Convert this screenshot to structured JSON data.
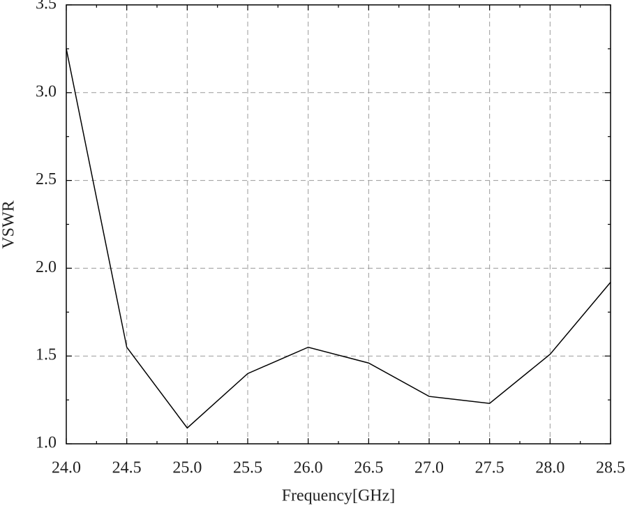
{
  "chart_data": {
    "type": "line",
    "xlabel": "Frequency[GHz]",
    "ylabel": "VSWR",
    "x": [
      24.0,
      24.5,
      25.0,
      25.5,
      26.0,
      26.5,
      27.0,
      27.5,
      28.0,
      28.5
    ],
    "series": [
      {
        "color": "#000000",
        "values": [
          3.25,
          1.55,
          1.09,
          1.4,
          1.55,
          1.46,
          1.27,
          1.23,
          1.51,
          1.92
        ]
      }
    ],
    "xlim": [
      24,
      28.5
    ],
    "xticks": [
      {
        "value": 24,
        "label": "24.0"
      },
      24.5,
      {
        "value": 25,
        "label": "25.0"
      },
      25.5,
      {
        "value": 26,
        "label": "26.0"
      },
      26.5,
      {
        "value": 27,
        "label": "27.0"
      },
      27.5,
      {
        "value": 28,
        "label": "28.0"
      },
      28.5
    ],
    "ylim": [
      1,
      3.5
    ],
    "yticks": [
      {
        "value": 1,
        "label": "1.0"
      },
      1.5,
      {
        "value": 2,
        "label": "2.0"
      },
      2.5,
      {
        "value": 3,
        "label": "3.0"
      },
      3.5
    ],
    "grid": true
  }
}
